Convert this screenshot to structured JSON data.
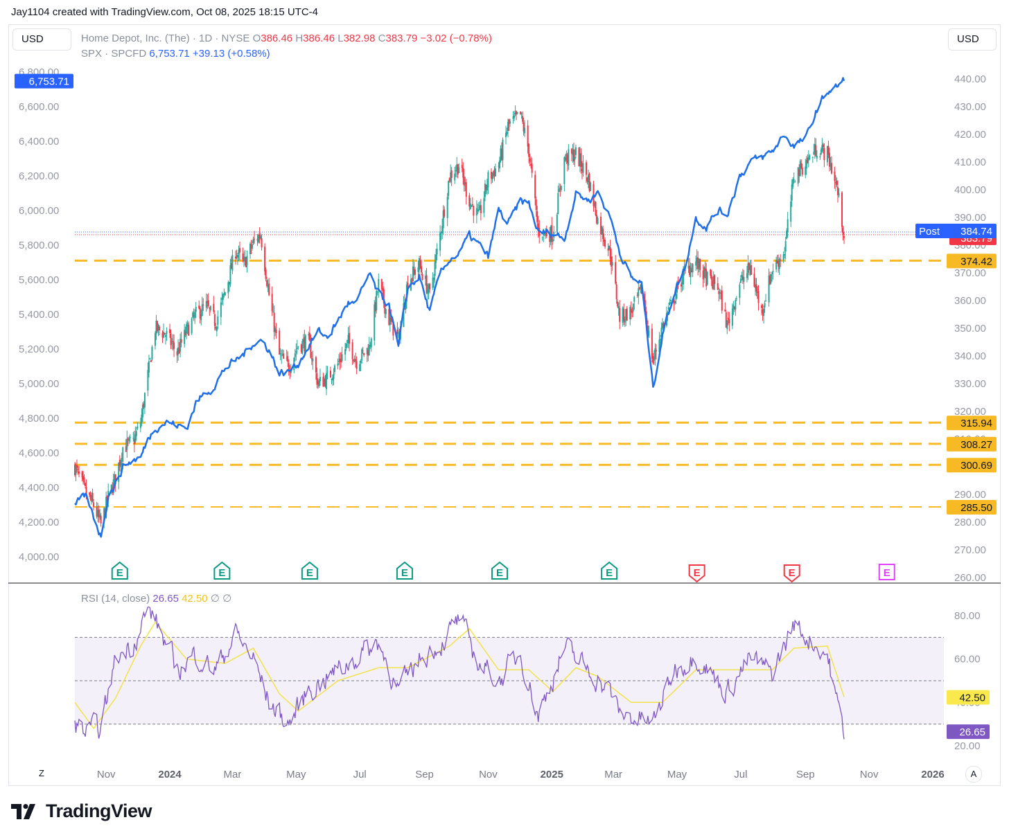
{
  "caption": "Jay1104 created with TradingView.com, Oct 08, 2025 18:15 UTC-4",
  "currency_left": "USD",
  "currency_right": "USD",
  "legend": {
    "symbol": "Home Depot, Inc. (The) · 1D · NYSE",
    "o_label": "O",
    "o_value": "386.46",
    "h_label": "H",
    "h_value": "386.46",
    "l_label": "L",
    "l_value": "382.98",
    "c_label": "C",
    "c_value": "383.79",
    "change": "−3.02 (−0.78%)",
    "compare_symbol": "SPX · SPCFD",
    "compare_value": "6,753.71",
    "compare_change": "+39.13 (+0.58%)"
  },
  "rsi_legend": {
    "label": "RSI (14, close)",
    "rsi_value": "26.65",
    "ma_value": "42.50",
    "extra1": "∅",
    "extra2": "∅"
  },
  "brand": "TradingView",
  "colors": {
    "up": "#26a69a",
    "down": "#f23645",
    "spx": "#1e6fe8",
    "support": "#f7b924",
    "rsi": "#7e57c2",
    "rsi_ma": "#f2e24b",
    "rsi_band": "#7e57c2",
    "earn_past": "#089981",
    "earn_recent": "#f23645",
    "earn_future": "#e040fb"
  },
  "chart_data": [
    {
      "type": "candlestick",
      "series_name": "Home Depot, Inc. (The)",
      "right_axis_ticks": [
        440,
        430,
        420,
        410,
        400,
        390,
        380,
        370,
        360,
        350,
        340,
        330,
        320,
        310,
        300,
        290,
        280,
        270,
        260
      ],
      "right_axis_labels": [
        "440.00",
        "430.00",
        "420.00",
        "410.00",
        "400.00",
        "390.00",
        "380.00",
        "370.00",
        "360.00",
        "350.00",
        "340.00",
        "330.00",
        "320.00",
        "310.00",
        "300.00",
        "290.00",
        "280.00",
        "270.00",
        "260.00"
      ],
      "ylim": [
        260,
        440
      ],
      "last_price": 383.79,
      "last_price_label": "383.79",
      "post_label": "Post",
      "post_price": 384.74,
      "post_price_label": "384.74",
      "support_levels": [
        {
          "value": 374.42,
          "label": "374.42"
        },
        {
          "value": 315.94,
          "label": "315.94"
        },
        {
          "value": 308.27,
          "label": "308.27"
        },
        {
          "value": 300.69,
          "label": "300.69"
        },
        {
          "value": 285.5,
          "label": "285.50"
        }
      ],
      "approx_closes": [
        [
          "2023-10-02",
          300
        ],
        [
          "2023-10-12",
          291
        ],
        [
          "2023-10-20",
          286
        ],
        [
          "2023-10-27",
          279
        ],
        [
          "2023-11-03",
          289
        ],
        [
          "2023-11-10",
          296
        ],
        [
          "2023-11-17",
          307
        ],
        [
          "2023-11-27",
          309
        ],
        [
          "2023-12-04",
          316
        ],
        [
          "2023-12-11",
          333
        ],
        [
          "2023-12-18",
          350
        ],
        [
          "2023-12-28",
          348
        ],
        [
          "2024-01-08",
          341
        ],
        [
          "2024-01-17",
          349
        ],
        [
          "2024-01-26",
          355
        ],
        [
          "2024-02-05",
          358
        ],
        [
          "2024-02-14",
          352
        ],
        [
          "2024-02-23",
          363
        ],
        [
          "2024-03-04",
          378
        ],
        [
          "2024-03-12",
          373
        ],
        [
          "2024-03-21",
          381
        ],
        [
          "2024-03-28",
          384
        ],
        [
          "2024-04-05",
          362
        ],
        [
          "2024-04-15",
          340
        ],
        [
          "2024-04-24",
          336
        ],
        [
          "2024-05-03",
          344
        ],
        [
          "2024-05-13",
          345
        ],
        [
          "2024-05-22",
          330
        ],
        [
          "2024-05-31",
          332
        ],
        [
          "2024-06-10",
          337
        ],
        [
          "2024-06-20",
          345
        ],
        [
          "2024-06-28",
          338
        ],
        [
          "2024-07-10",
          343
        ],
        [
          "2024-07-19",
          366
        ],
        [
          "2024-07-29",
          353
        ],
        [
          "2024-08-07",
          346
        ],
        [
          "2024-08-16",
          367
        ],
        [
          "2024-08-27",
          373
        ],
        [
          "2024-09-06",
          362
        ],
        [
          "2024-09-16",
          384
        ],
        [
          "2024-09-25",
          405
        ],
        [
          "2024-10-04",
          409
        ],
        [
          "2024-10-14",
          396
        ],
        [
          "2024-10-23",
          390
        ],
        [
          "2024-11-01",
          404
        ],
        [
          "2024-11-11",
          409
        ],
        [
          "2024-11-20",
          423
        ],
        [
          "2024-12-02",
          427
        ],
        [
          "2024-12-10",
          414
        ],
        [
          "2024-12-19",
          385
        ],
        [
          "2025-01-02",
          384
        ],
        [
          "2025-01-13",
          411
        ],
        [
          "2025-01-24",
          413
        ],
        [
          "2025-02-05",
          404
        ],
        [
          "2025-02-14",
          389
        ],
        [
          "2025-02-26",
          377
        ],
        [
          "2025-03-07",
          354
        ],
        [
          "2025-03-18",
          356
        ],
        [
          "2025-03-28",
          364
        ],
        [
          "2025-04-08",
          338
        ],
        [
          "2025-04-17",
          351
        ],
        [
          "2025-04-28",
          361
        ],
        [
          "2025-05-08",
          370
        ],
        [
          "2025-05-19",
          374
        ],
        [
          "2025-05-29",
          368
        ],
        [
          "2025-06-09",
          365
        ],
        [
          "2025-06-18",
          351
        ],
        [
          "2025-06-30",
          366
        ],
        [
          "2025-07-10",
          372
        ],
        [
          "2025-07-21",
          356
        ],
        [
          "2025-07-31",
          371
        ],
        [
          "2025-08-12",
          378
        ],
        [
          "2025-08-21",
          405
        ],
        [
          "2025-09-02",
          410
        ],
        [
          "2025-09-12",
          415
        ],
        [
          "2025-09-22",
          413
        ],
        [
          "2025-10-01",
          401
        ],
        [
          "2025-10-08",
          383.79
        ]
      ]
    },
    {
      "type": "line",
      "series_name": "SPX · SPCFD",
      "left_axis_ticks": [
        6800,
        6600,
        6400,
        6200,
        6000,
        5800,
        5600,
        5400,
        5200,
        5000,
        4800,
        4600,
        4400,
        4200,
        4000
      ],
      "left_axis_labels": [
        "6,800.00",
        "6,600.00",
        "6,400.00",
        "6,200.00",
        "6,000.00",
        "5,800.00",
        "5,600.00",
        "5,400.00",
        "5,200.00",
        "5,000.00",
        "4,800.00",
        "4,600.00",
        "4,400.00",
        "4,200.00",
        "4,000.00"
      ],
      "last_value": 6753.71,
      "last_value_label": "6,753.71",
      "approx_values": [
        [
          "2023-10-02",
          4290
        ],
        [
          "2023-10-12",
          4350
        ],
        [
          "2023-10-20",
          4230
        ],
        [
          "2023-10-27",
          4120
        ],
        [
          "2023-11-03",
          4360
        ],
        [
          "2023-11-10",
          4420
        ],
        [
          "2023-11-17",
          4520
        ],
        [
          "2023-11-27",
          4560
        ],
        [
          "2023-12-04",
          4570
        ],
        [
          "2023-12-11",
          4680
        ],
        [
          "2023-12-18",
          4750
        ],
        [
          "2023-12-28",
          4780
        ],
        [
          "2024-01-08",
          4760
        ],
        [
          "2024-01-17",
          4740
        ],
        [
          "2024-01-26",
          4890
        ],
        [
          "2024-02-05",
          4950
        ],
        [
          "2024-02-14",
          5000
        ],
        [
          "2024-02-23",
          5090
        ],
        [
          "2024-03-04",
          5130
        ],
        [
          "2024-03-12",
          5170
        ],
        [
          "2024-03-21",
          5240
        ],
        [
          "2024-03-28",
          5250
        ],
        [
          "2024-04-05",
          5200
        ],
        [
          "2024-04-15",
          5060
        ],
        [
          "2024-04-24",
          5070
        ],
        [
          "2024-05-03",
          5120
        ],
        [
          "2024-05-13",
          5220
        ],
        [
          "2024-05-22",
          5300
        ],
        [
          "2024-05-31",
          5270
        ],
        [
          "2024-06-10",
          5360
        ],
        [
          "2024-06-20",
          5470
        ],
        [
          "2024-06-28",
          5460
        ],
        [
          "2024-07-10",
          5630
        ],
        [
          "2024-07-19",
          5510
        ],
        [
          "2024-07-29",
          5460
        ],
        [
          "2024-08-07",
          5200
        ],
        [
          "2024-08-16",
          5550
        ],
        [
          "2024-08-27",
          5620
        ],
        [
          "2024-09-06",
          5410
        ],
        [
          "2024-09-16",
          5630
        ],
        [
          "2024-09-25",
          5720
        ],
        [
          "2024-10-04",
          5750
        ],
        [
          "2024-10-14",
          5850
        ],
        [
          "2024-10-23",
          5800
        ],
        [
          "2024-11-01",
          5730
        ],
        [
          "2024-11-11",
          6000
        ],
        [
          "2024-11-20",
          5920
        ],
        [
          "2024-12-02",
          6050
        ],
        [
          "2024-12-10",
          6040
        ],
        [
          "2024-12-19",
          5870
        ],
        [
          "2025-01-02",
          5870
        ],
        [
          "2025-01-13",
          5840
        ],
        [
          "2025-01-24",
          6100
        ],
        [
          "2025-02-05",
          6060
        ],
        [
          "2025-02-14",
          6110
        ],
        [
          "2025-02-26",
          5960
        ],
        [
          "2025-03-07",
          5770
        ],
        [
          "2025-03-18",
          5610
        ],
        [
          "2025-03-28",
          5580
        ],
        [
          "2025-04-08",
          4980
        ],
        [
          "2025-04-17",
          5280
        ],
        [
          "2025-04-28",
          5530
        ],
        [
          "2025-05-08",
          5660
        ],
        [
          "2025-05-19",
          5960
        ],
        [
          "2025-05-29",
          5910
        ],
        [
          "2025-06-09",
          6000
        ],
        [
          "2025-06-18",
          5980
        ],
        [
          "2025-06-30",
          6200
        ],
        [
          "2025-07-10",
          6280
        ],
        [
          "2025-07-21",
          6300
        ],
        [
          "2025-07-31",
          6340
        ],
        [
          "2025-08-12",
          6440
        ],
        [
          "2025-08-21",
          6370
        ],
        [
          "2025-09-02",
          6420
        ],
        [
          "2025-09-12",
          6580
        ],
        [
          "2025-09-22",
          6690
        ],
        [
          "2025-10-01",
          6710
        ],
        [
          "2025-10-08",
          6753.71
        ]
      ]
    },
    {
      "type": "line",
      "series_name": "RSI (14, close)",
      "axis_ticks": [
        80,
        60,
        40,
        20
      ],
      "axis_labels": [
        "80.00",
        "60.00",
        "40.00",
        "20.00"
      ],
      "ylim": [
        20,
        80
      ],
      "bands": {
        "upper": 70,
        "middle": 50,
        "lower": 30
      },
      "rsi_last": 26.65,
      "rsi_last_label": "26.65",
      "ma_last": 42.5,
      "ma_last_label": "42.50",
      "rsi_approx": [
        [
          "2023-10-02",
          30
        ],
        [
          "2023-10-12",
          26
        ],
        [
          "2023-10-27",
          28
        ],
        [
          "2023-11-10",
          60
        ],
        [
          "2023-11-27",
          68
        ],
        [
          "2023-12-11",
          83
        ],
        [
          "2023-12-18",
          78
        ],
        [
          "2024-01-08",
          55
        ],
        [
          "2024-01-26",
          62
        ],
        [
          "2024-02-14",
          55
        ],
        [
          "2024-03-04",
          72
        ],
        [
          "2024-03-21",
          60
        ],
        [
          "2024-04-05",
          40
        ],
        [
          "2024-04-24",
          30
        ],
        [
          "2024-05-13",
          46
        ],
        [
          "2024-06-10",
          55
        ],
        [
          "2024-07-19",
          68
        ],
        [
          "2024-08-07",
          45
        ],
        [
          "2024-08-27",
          60
        ],
        [
          "2024-09-16",
          67
        ],
        [
          "2024-10-04",
          78
        ],
        [
          "2024-10-23",
          58
        ],
        [
          "2024-11-11",
          50
        ],
        [
          "2024-12-02",
          63
        ],
        [
          "2024-12-19",
          34
        ],
        [
          "2025-01-13",
          65
        ],
        [
          "2025-02-05",
          55
        ],
        [
          "2025-02-26",
          45
        ],
        [
          "2025-03-07",
          35
        ],
        [
          "2025-04-08",
          30
        ],
        [
          "2025-04-28",
          55
        ],
        [
          "2025-05-19",
          62
        ],
        [
          "2025-06-18",
          45
        ],
        [
          "2025-07-10",
          60
        ],
        [
          "2025-07-31",
          53
        ],
        [
          "2025-08-21",
          76
        ],
        [
          "2025-09-12",
          66
        ],
        [
          "2025-09-22",
          62
        ],
        [
          "2025-10-01",
          40
        ],
        [
          "2025-10-08",
          26.65
        ]
      ],
      "ma_approx": [
        [
          "2023-10-02",
          40
        ],
        [
          "2023-10-20",
          28
        ],
        [
          "2023-11-10",
          42
        ],
        [
          "2023-12-04",
          66
        ],
        [
          "2023-12-18",
          77
        ],
        [
          "2024-01-17",
          60
        ],
        [
          "2024-02-23",
          58
        ],
        [
          "2024-03-21",
          65
        ],
        [
          "2024-04-15",
          44
        ],
        [
          "2024-05-03",
          36
        ],
        [
          "2024-06-10",
          50
        ],
        [
          "2024-07-19",
          56
        ],
        [
          "2024-08-16",
          56
        ],
        [
          "2024-09-25",
          66
        ],
        [
          "2024-10-14",
          74
        ],
        [
          "2024-11-11",
          55
        ],
        [
          "2024-12-10",
          55
        ],
        [
          "2025-01-02",
          45
        ],
        [
          "2025-01-24",
          56
        ],
        [
          "2025-02-14",
          52
        ],
        [
          "2025-03-18",
          40
        ],
        [
          "2025-04-17",
          40
        ],
        [
          "2025-05-19",
          55
        ],
        [
          "2025-06-18",
          55
        ],
        [
          "2025-07-31",
          55
        ],
        [
          "2025-08-21",
          65
        ],
        [
          "2025-09-22",
          66
        ],
        [
          "2025-10-08",
          42.5
        ]
      ]
    }
  ],
  "earnings_markers": [
    {
      "date": "2023-11-14",
      "letter": "E",
      "kind": "past"
    },
    {
      "date": "2024-02-20",
      "letter": "E",
      "kind": "past"
    },
    {
      "date": "2024-05-14",
      "letter": "E",
      "kind": "past"
    },
    {
      "date": "2024-08-13",
      "letter": "E",
      "kind": "past"
    },
    {
      "date": "2024-11-12",
      "letter": "E",
      "kind": "past"
    },
    {
      "date": "2025-02-25",
      "letter": "E",
      "kind": "past"
    },
    {
      "date": "2025-05-20",
      "letter": "E",
      "kind": "recent"
    },
    {
      "date": "2025-08-19",
      "letter": "E",
      "kind": "recent"
    },
    {
      "date": "2025-11-18",
      "letter": "E",
      "kind": "future"
    }
  ],
  "time_axis": [
    {
      "date": "2023-11-01",
      "label": "Nov",
      "year": false
    },
    {
      "date": "2024-01-01",
      "label": "2024",
      "year": true
    },
    {
      "date": "2024-03-01",
      "label": "Mar",
      "year": false
    },
    {
      "date": "2024-05-01",
      "label": "May",
      "year": false
    },
    {
      "date": "2024-07-01",
      "label": "Jul",
      "year": false
    },
    {
      "date": "2024-09-01",
      "label": "Sep",
      "year": false
    },
    {
      "date": "2024-11-01",
      "label": "Nov",
      "year": false
    },
    {
      "date": "2025-01-01",
      "label": "2025",
      "year": true
    },
    {
      "date": "2025-03-01",
      "label": "Mar",
      "year": false
    },
    {
      "date": "2025-05-01",
      "label": "May",
      "year": false
    },
    {
      "date": "2025-07-01",
      "label": "Jul",
      "year": false
    },
    {
      "date": "2025-09-01",
      "label": "Sep",
      "year": false
    },
    {
      "date": "2025-11-01",
      "label": "Nov",
      "year": false
    },
    {
      "date": "2026-01-01",
      "label": "2026",
      "year": true
    }
  ],
  "corner_left": "Z",
  "corner_right": "A"
}
